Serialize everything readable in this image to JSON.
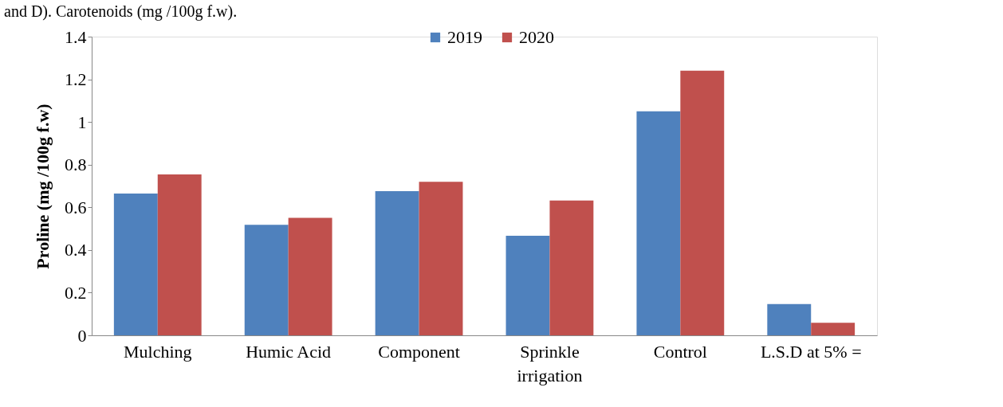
{
  "chart_data": {
    "type": "bar",
    "ylabel": "Proline  (mg /100g f.w)",
    "annotations": [
      "and D). Carotenoids (mg /100g f.w)."
    ],
    "categories": [
      "Mulching",
      "Humic Acid",
      "Component",
      "Sprinkle\nirrigation",
      "Control",
      "L.S.D at 5% ="
    ],
    "series": [
      {
        "name": "2019",
        "color": "#4f81bd",
        "values": [
          0.665,
          0.518,
          0.676,
          0.467,
          1.05,
          0.147
        ]
      },
      {
        "name": "2020",
        "color": "#c0504d",
        "values": [
          0.754,
          0.551,
          0.72,
          0.632,
          1.24,
          0.059
        ]
      }
    ],
    "ylim": [
      0,
      1.4
    ],
    "yticks": [
      0,
      0.2,
      0.4,
      0.6,
      0.8,
      1,
      1.2,
      1.4
    ],
    "legend": "top",
    "grid": false
  }
}
